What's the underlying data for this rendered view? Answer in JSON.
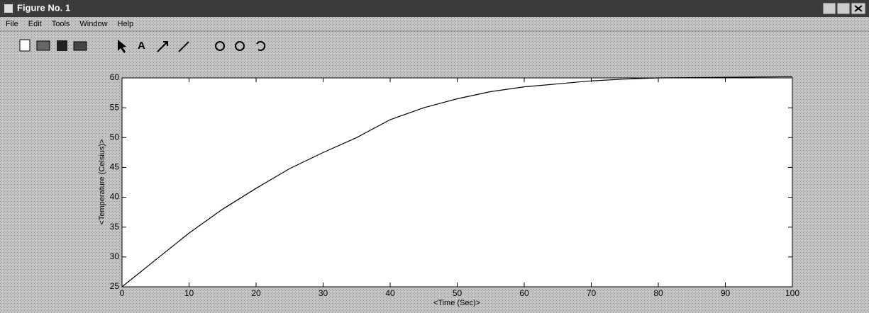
{
  "window": {
    "title": "Figure No. 1",
    "menu": [
      "File",
      "Edit",
      "Tools",
      "Window",
      "Help"
    ]
  },
  "chart_data": {
    "type": "line",
    "xlabel": "<Time (Sec)>",
    "ylabel": "<Temperature (Celsius)>",
    "x": [
      0,
      5,
      10,
      15,
      20,
      25,
      30,
      35,
      40,
      45,
      50,
      55,
      60,
      65,
      70,
      75,
      80,
      90,
      100
    ],
    "values": [
      25,
      29.5,
      34,
      38,
      41.5,
      44.8,
      47.5,
      50,
      53,
      55,
      56.5,
      57.7,
      58.5,
      59,
      59.5,
      59.8,
      60,
      60.1,
      60.2
    ],
    "color": "#000000",
    "xlim": [
      0,
      100
    ],
    "xticks": [
      0,
      10,
      20,
      30,
      40,
      50,
      60,
      70,
      80,
      90,
      100
    ],
    "ylim": [
      25,
      60
    ],
    "yticks": [
      25,
      30,
      35,
      40,
      45,
      50,
      55,
      60
    ]
  }
}
